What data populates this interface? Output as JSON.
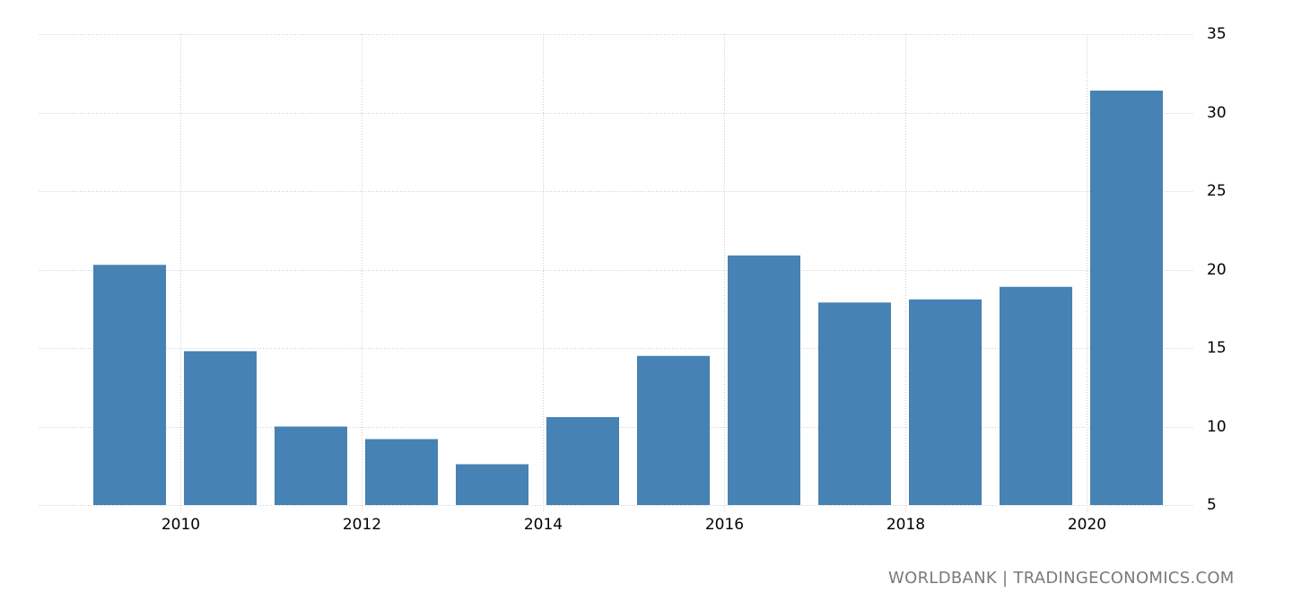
{
  "chart_data": {
    "type": "bar",
    "title": "",
    "xlabel": "",
    "ylabel": "",
    "categories": [
      "2009",
      "2010",
      "2011",
      "2012",
      "2013",
      "2014",
      "2015",
      "2016",
      "2017",
      "2018",
      "2019",
      "2020"
    ],
    "values": [
      20.3,
      14.8,
      10.0,
      9.2,
      7.6,
      10.6,
      14.5,
      20.9,
      17.9,
      18.1,
      18.9,
      31.4
    ],
    "ylim": [
      5,
      35
    ],
    "yticks": [
      5,
      10,
      15,
      20,
      25,
      30,
      35
    ],
    "xticks": [
      "2010",
      "2012",
      "2014",
      "2016",
      "2018",
      "2020"
    ],
    "grid": true,
    "y_axis_position": "right",
    "legend": null,
    "bar_color": "#4682b4"
  },
  "source_label": "WORLDBANK | TRADINGECONOMICS.COM",
  "colors": {
    "bar": "#4682b4",
    "grid": "#cccccc",
    "source_text": "#7a7a7a"
  }
}
